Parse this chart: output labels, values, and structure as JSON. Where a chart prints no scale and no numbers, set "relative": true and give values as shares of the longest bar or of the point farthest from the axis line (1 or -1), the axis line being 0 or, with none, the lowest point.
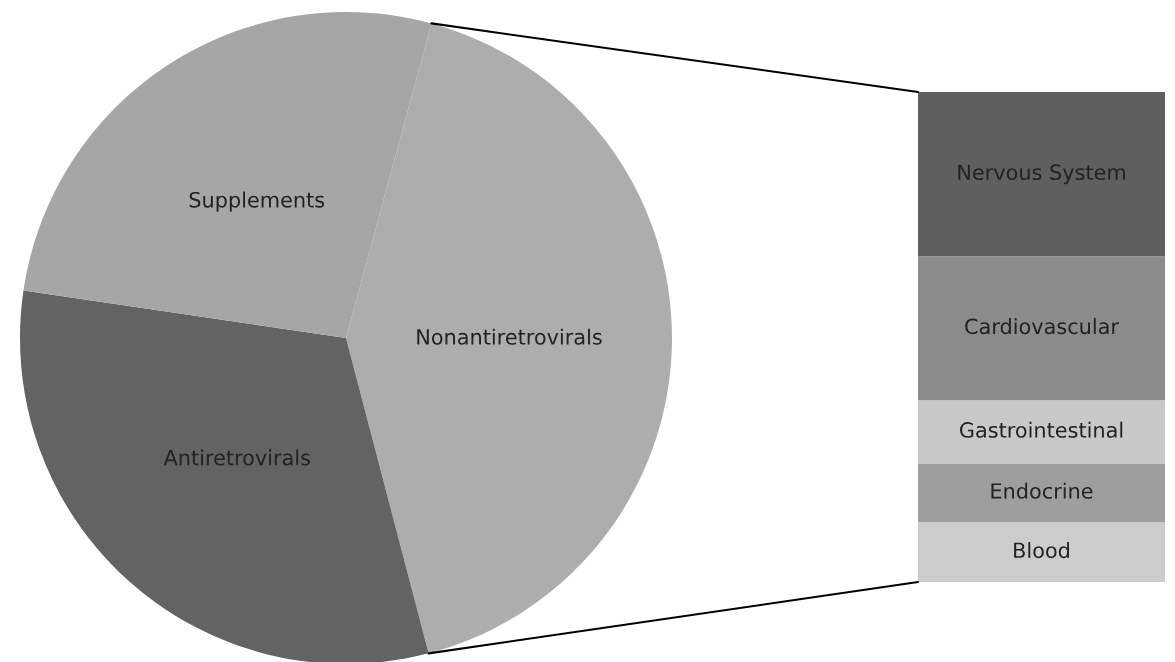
{
  "chart_data": [
    {
      "type": "pie",
      "categories": [
        "Nonantiretrovirals",
        "Antiretrovirals",
        "Supplements"
      ],
      "values": [
        41.7,
        31.4,
        26.9
      ],
      "colors": [
        "#adadad",
        "#636363",
        "#a6a6a6"
      ]
    },
    {
      "type": "bar",
      "relative": true,
      "stacked": true,
      "categories": [
        null
      ],
      "series": [
        {
          "name": "Blood",
          "color": "#cccccc",
          "values": [
            0.122
          ]
        },
        {
          "name": "Endocrine",
          "color": "#9e9e9e",
          "values": [
            0.12
          ]
        },
        {
          "name": "Gastrointestinal",
          "color": "#c8c8c8",
          "values": [
            0.129
          ]
        },
        {
          "name": "Cardiovascular",
          "color": "#8c8c8c",
          "values": [
            0.294
          ]
        },
        {
          "name": "Nervous System",
          "color": "#5f5f5f",
          "values": [
            0.335
          ]
        }
      ]
    }
  ]
}
